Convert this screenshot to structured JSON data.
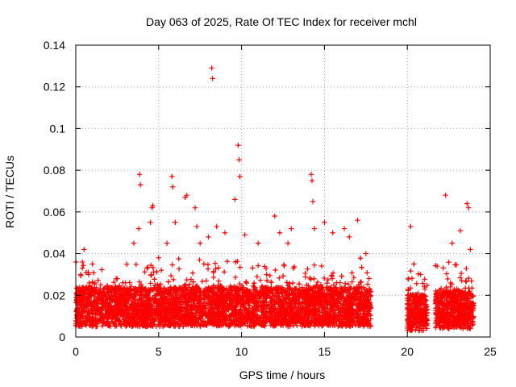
{
  "chart_data": {
    "type": "scatter",
    "title": "Day 063 of 2025, Rate Of TEC Index for receiver mchl",
    "xlabel": "GPS time / hours",
    "ylabel": "ROTI / TECUs",
    "xlim": [
      0,
      25
    ],
    "ylim": [
      0,
      0.14
    ],
    "xticks": [
      0,
      5,
      10,
      15,
      20,
      25
    ],
    "yticks": [
      0,
      0.02,
      0.04,
      0.06,
      0.08,
      0.1,
      0.12,
      0.14
    ],
    "xtick_labels": [
      "0",
      "5",
      "10",
      "15",
      "20",
      "25"
    ],
    "ytick_labels": [
      "0",
      "0.02",
      "0.04",
      "0.06",
      "0.08",
      "0.1",
      "0.12",
      "0.14"
    ],
    "grid": true,
    "marker": "plus",
    "color": "#ff0000",
    "series": [
      {
        "name": "ROTI",
        "points": [
          [
            0.15,
            0.012
          ],
          [
            0.3,
            0.03
          ],
          [
            0.4,
            0.036
          ],
          [
            0.5,
            0.042
          ],
          [
            1.0,
            0.035
          ],
          [
            1.5,
            0.025
          ],
          [
            2.5,
            0.028
          ],
          [
            3.0,
            0.026
          ],
          [
            3.5,
            0.045
          ],
          [
            3.8,
            0.052
          ],
          [
            3.85,
            0.078
          ],
          [
            3.9,
            0.073
          ],
          [
            4.5,
            0.055
          ],
          [
            4.6,
            0.062
          ],
          [
            4.65,
            0.063
          ],
          [
            5.0,
            0.038
          ],
          [
            5.5,
            0.045
          ],
          [
            5.8,
            0.077
          ],
          [
            5.85,
            0.072
          ],
          [
            6.0,
            0.055
          ],
          [
            6.6,
            0.067
          ],
          [
            6.7,
            0.068
          ],
          [
            7.2,
            0.062
          ],
          [
            7.3,
            0.053
          ],
          [
            7.5,
            0.045
          ],
          [
            8.0,
            0.048
          ],
          [
            8.2,
            0.129
          ],
          [
            8.25,
            0.124
          ],
          [
            8.5,
            0.053
          ],
          [
            9.0,
            0.05
          ],
          [
            9.6,
            0.066
          ],
          [
            9.8,
            0.092
          ],
          [
            9.85,
            0.085
          ],
          [
            9.9,
            0.077
          ],
          [
            10.2,
            0.049
          ],
          [
            11.0,
            0.045
          ],
          [
            12.0,
            0.058
          ],
          [
            12.3,
            0.05
          ],
          [
            12.8,
            0.045
          ],
          [
            13.0,
            0.052
          ],
          [
            14.2,
            0.078
          ],
          [
            14.25,
            0.075
          ],
          [
            14.3,
            0.065
          ],
          [
            14.4,
            0.052
          ],
          [
            15.0,
            0.055
          ],
          [
            15.5,
            0.05
          ],
          [
            16.2,
            0.052
          ],
          [
            16.5,
            0.048
          ],
          [
            17.0,
            0.056
          ],
          [
            17.5,
            0.04
          ],
          [
            17.8,
            0.02
          ],
          [
            20.2,
            0.053
          ],
          [
            20.4,
            0.035
          ],
          [
            20.8,
            0.03
          ],
          [
            21.0,
            0.02
          ],
          [
            21.8,
            0.034
          ],
          [
            22.3,
            0.068
          ],
          [
            22.7,
            0.045
          ],
          [
            23.2,
            0.051
          ],
          [
            23.6,
            0.064
          ],
          [
            23.7,
            0.062
          ],
          [
            23.8,
            0.042
          ],
          [
            24.0,
            0.015
          ]
        ]
      }
    ],
    "dense_segments": [
      {
        "x_start": 0.0,
        "x_end": 17.8,
        "typical_low": 0.005,
        "typical_high": 0.032
      },
      {
        "x_start": 20.0,
        "x_end": 21.2,
        "typical_low": 0.003,
        "typical_high": 0.028
      },
      {
        "x_start": 21.7,
        "x_end": 24.0,
        "typical_low": 0.004,
        "typical_high": 0.03
      }
    ]
  }
}
